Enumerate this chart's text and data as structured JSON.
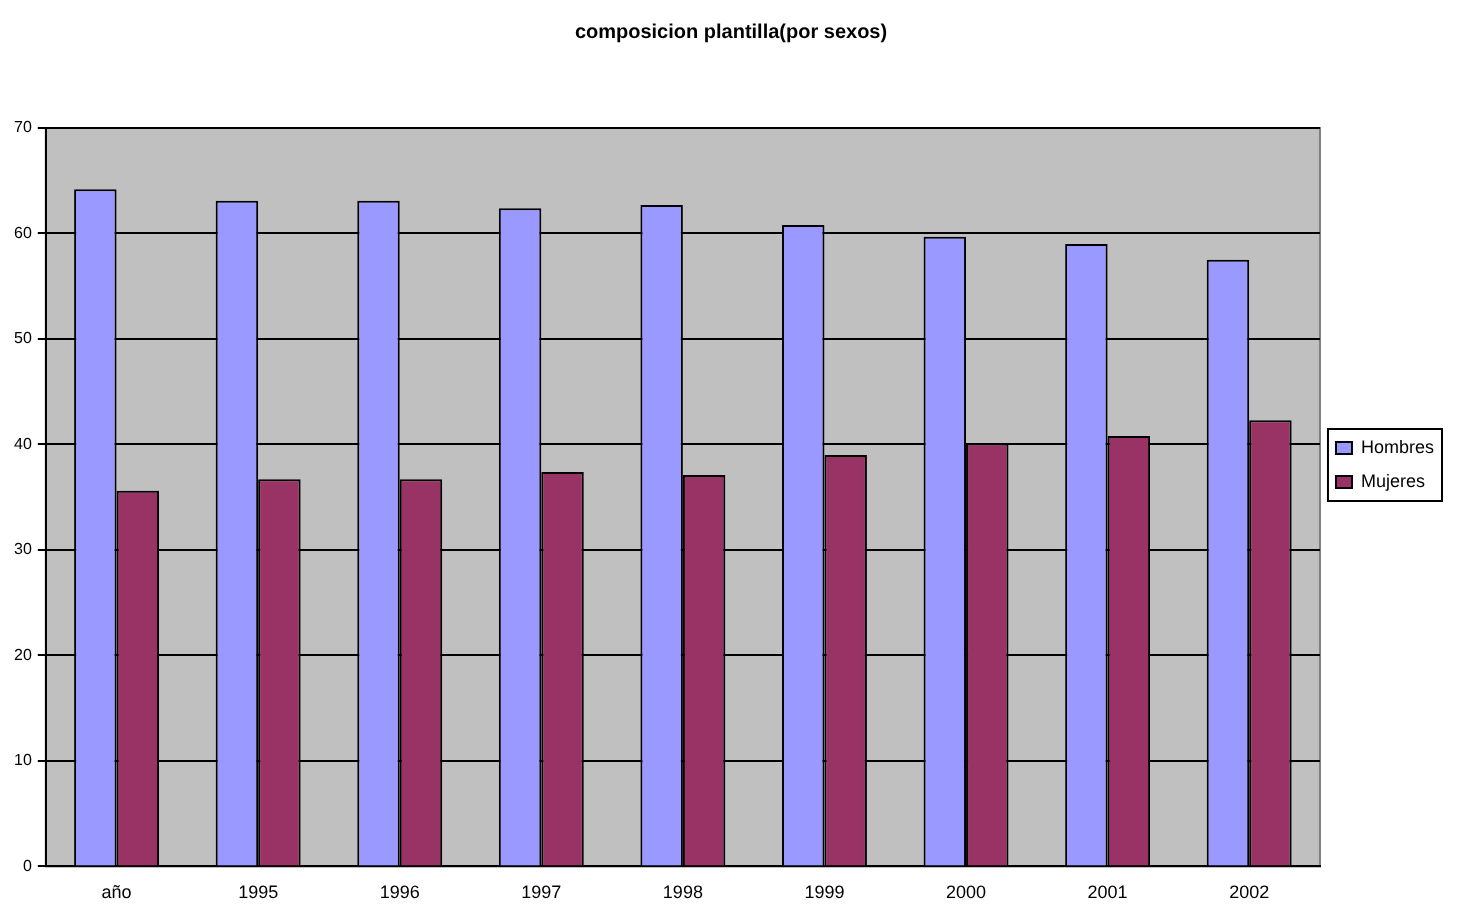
{
  "chart_data": {
    "type": "bar",
    "title": "composicion plantilla(por sexos)",
    "categories": [
      "año",
      "1995",
      "1996",
      "1997",
      "1998",
      "1999",
      "2000",
      "2001",
      "2002"
    ],
    "series": [
      {
        "name": "Hombres",
        "color": "#9999ff",
        "values": [
          64.2,
          63.1,
          63.1,
          62.4,
          62.7,
          60.8,
          59.7,
          59.0,
          57.5
        ]
      },
      {
        "name": "Mujeres",
        "color": "#993366",
        "values": [
          35.6,
          36.7,
          36.7,
          37.4,
          37.1,
          39.0,
          40.1,
          40.8,
          42.3
        ]
      }
    ],
    "ylim": [
      0,
      70
    ],
    "yticks": [
      0,
      10,
      20,
      30,
      40,
      50,
      60,
      70
    ],
    "grid": "y",
    "legend": "right"
  }
}
